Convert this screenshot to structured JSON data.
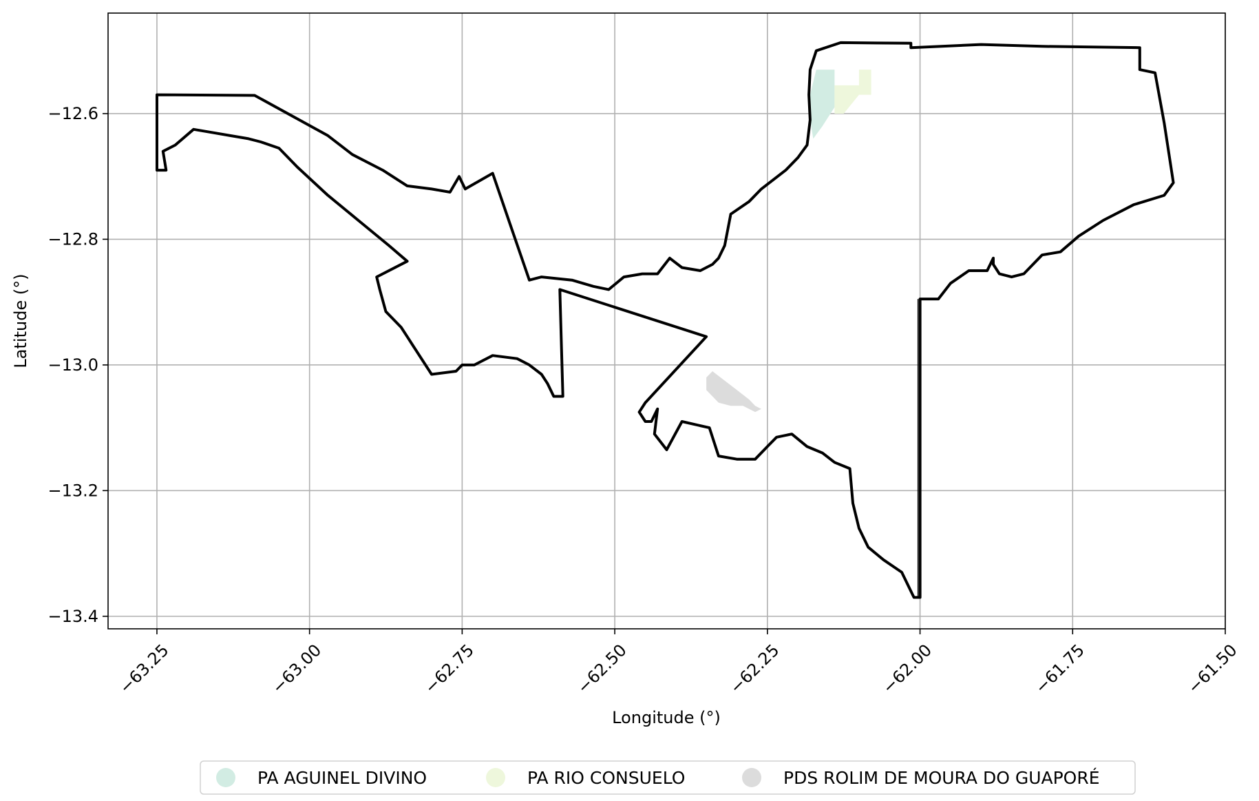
{
  "chart_data": {
    "type": "map",
    "xlabel": "Longitude (°)",
    "ylabel": "Latitude (°)",
    "xlim": [
      -63.33,
      -61.5
    ],
    "ylim": [
      -13.42,
      -12.44
    ],
    "grid": true,
    "x_ticks": [
      {
        "value": -63.25,
        "label": "−63.25"
      },
      {
        "value": -63.0,
        "label": "−63.00"
      },
      {
        "value": -62.75,
        "label": "−62.75"
      },
      {
        "value": -62.5,
        "label": "−62.50"
      },
      {
        "value": -62.25,
        "label": "−62.25"
      },
      {
        "value": -62.0,
        "label": "−62.00"
      },
      {
        "value": -61.75,
        "label": "−61.75"
      },
      {
        "value": -61.5,
        "label": "−61.50"
      }
    ],
    "y_ticks": [
      {
        "value": -12.6,
        "label": "−12.6"
      },
      {
        "value": -12.8,
        "label": "−12.8"
      },
      {
        "value": -13.0,
        "label": "−13.0"
      },
      {
        "value": -13.2,
        "label": "−13.2"
      },
      {
        "value": -13.4,
        "label": "−13.4"
      }
    ],
    "legend_position": "bottom-center",
    "outline_color": "#000000",
    "boundary": [
      [
        -63.25,
        -12.57
      ],
      [
        -63.09,
        -12.571
      ],
      [
        -62.97,
        -12.635
      ],
      [
        -62.93,
        -12.665
      ],
      [
        -62.88,
        -12.69
      ],
      [
        -62.84,
        -12.715
      ],
      [
        -62.8,
        -12.72
      ],
      [
        -62.77,
        -12.725
      ],
      [
        -62.755,
        -12.7
      ],
      [
        -62.745,
        -12.72
      ],
      [
        -62.7,
        -12.695
      ],
      [
        -62.67,
        -12.78
      ],
      [
        -62.64,
        -12.865
      ],
      [
        -62.62,
        -12.86
      ],
      [
        -62.57,
        -12.865
      ],
      [
        -62.535,
        -12.875
      ],
      [
        -62.51,
        -12.88
      ],
      [
        -62.485,
        -12.86
      ],
      [
        -62.455,
        -12.855
      ],
      [
        -62.43,
        -12.855
      ],
      [
        -62.41,
        -12.83
      ],
      [
        -62.39,
        -12.845
      ],
      [
        -62.36,
        -12.85
      ],
      [
        -62.34,
        -12.84
      ],
      [
        -62.33,
        -12.83
      ],
      [
        -62.32,
        -12.81
      ],
      [
        -62.31,
        -12.76
      ],
      [
        -62.28,
        -12.74
      ],
      [
        -62.26,
        -12.72
      ],
      [
        -62.22,
        -12.69
      ],
      [
        -62.2,
        -12.67
      ],
      [
        -62.185,
        -12.65
      ],
      [
        -62.18,
        -12.61
      ],
      [
        -62.182,
        -12.57
      ],
      [
        -62.18,
        -12.53
      ],
      [
        -62.17,
        -12.5
      ],
      [
        -62.13,
        -12.487
      ],
      [
        -62.015,
        -12.488
      ],
      [
        -62.015,
        -12.495
      ],
      [
        -61.9,
        -12.49
      ],
      [
        -61.8,
        -12.493
      ],
      [
        -61.64,
        -12.495
      ],
      [
        -61.64,
        -12.53
      ],
      [
        -61.615,
        -12.535
      ],
      [
        -61.6,
        -12.615
      ],
      [
        -61.585,
        -12.71
      ],
      [
        -61.6,
        -12.73
      ],
      [
        -61.65,
        -12.745
      ],
      [
        -61.7,
        -12.77
      ],
      [
        -61.74,
        -12.795
      ],
      [
        -61.77,
        -12.82
      ],
      [
        -61.8,
        -12.825
      ],
      [
        -61.83,
        -12.855
      ],
      [
        -61.85,
        -12.86
      ],
      [
        -61.87,
        -12.855
      ],
      [
        -61.88,
        -12.84
      ],
      [
        -61.88,
        -12.83
      ],
      [
        -61.89,
        -12.85
      ],
      [
        -61.92,
        -12.85
      ],
      [
        -61.95,
        -12.87
      ],
      [
        -61.97,
        -12.895
      ],
      [
        -62.0,
        -12.895
      ],
      [
        -62.0,
        -13.37
      ],
      [
        -62.01,
        -13.37
      ],
      [
        -62.03,
        -13.33
      ],
      [
        -62.06,
        -13.31
      ],
      [
        -62.085,
        -13.29
      ],
      [
        -62.1,
        -13.26
      ],
      [
        -62.11,
        -13.22
      ],
      [
        -62.115,
        -13.165
      ],
      [
        -62.14,
        -13.155
      ],
      [
        -62.16,
        -13.14
      ],
      [
        -62.185,
        -13.13
      ],
      [
        -62.21,
        -13.11
      ],
      [
        -62.235,
        -13.115
      ],
      [
        -62.25,
        -13.13
      ],
      [
        -62.27,
        -13.15
      ],
      [
        -62.3,
        -13.15
      ],
      [
        -62.33,
        -13.145
      ],
      [
        -62.345,
        -13.1
      ],
      [
        -62.39,
        -13.09
      ],
      [
        -62.415,
        -13.135
      ],
      [
        -62.435,
        -13.11
      ],
      [
        -62.43,
        -13.07
      ],
      [
        -62.44,
        -13.09
      ],
      [
        -62.45,
        -13.09
      ],
      [
        -62.46,
        -13.075
      ],
      [
        -62.45,
        -13.06
      ],
      [
        -62.35,
        -12.955
      ],
      [
        -62.59,
        -12.88
      ],
      [
        -62.585,
        -13.05
      ],
      [
        -62.6,
        -13.05
      ],
      [
        -62.61,
        -13.03
      ],
      [
        -62.62,
        -13.015
      ],
      [
        -62.64,
        -13.0
      ],
      [
        -62.66,
        -12.99
      ],
      [
        -62.7,
        -12.985
      ],
      [
        -62.73,
        -13.0
      ],
      [
        -62.75,
        -13.0
      ],
      [
        -62.76,
        -13.01
      ],
      [
        -62.8,
        -13.015
      ],
      [
        -62.83,
        -12.97
      ],
      [
        -62.84,
        -12.955
      ],
      [
        -62.85,
        -12.94
      ],
      [
        -62.86,
        -12.93
      ],
      [
        -62.875,
        -12.915
      ],
      [
        -62.885,
        -12.88
      ],
      [
        -62.89,
        -12.86
      ],
      [
        -62.84,
        -12.835
      ],
      [
        -62.87,
        -12.81
      ],
      [
        -62.92,
        -12.77
      ],
      [
        -62.97,
        -12.73
      ],
      [
        -63.02,
        -12.685
      ],
      [
        -63.05,
        -12.655
      ],
      [
        -63.08,
        -12.645
      ],
      [
        -63.1,
        -12.64
      ],
      [
        -63.13,
        -12.635
      ],
      [
        -63.16,
        -12.63
      ],
      [
        -63.19,
        -12.625
      ],
      [
        -63.22,
        -12.65
      ],
      [
        -63.24,
        -12.66
      ],
      [
        -63.235,
        -12.69
      ],
      [
        -63.25,
        -12.69
      ]
    ],
    "boundary_ribbon": [
      [
        -62.0,
        -12.895
      ],
      [
        -62.0,
        -13.37
      ]
    ],
    "series": [
      {
        "name": "PA AGUINEL DIVINO",
        "color": "#d2ece3",
        "polygon": [
          [
            -62.17,
            -12.53
          ],
          [
            -62.14,
            -12.53
          ],
          [
            -62.14,
            -12.59
          ],
          [
            -62.15,
            -12.605
          ],
          [
            -62.16,
            -12.62
          ],
          [
            -62.175,
            -12.64
          ],
          [
            -62.18,
            -12.61
          ],
          [
            -62.18,
            -12.57
          ]
        ]
      },
      {
        "name": "PA RIO CONSUELO",
        "color": "#eef7dc",
        "polygon": [
          [
            -62.14,
            -12.555
          ],
          [
            -62.1,
            -12.555
          ],
          [
            -62.1,
            -12.53
          ],
          [
            -62.08,
            -12.53
          ],
          [
            -62.08,
            -12.57
          ],
          [
            -62.1,
            -12.57
          ],
          [
            -62.125,
            -12.6
          ],
          [
            -62.14,
            -12.6
          ]
        ]
      },
      {
        "name": "PDS ROLIM DE MOURA DO GUAPORÉ",
        "color": "#dcdcdc",
        "polygon": [
          [
            -62.35,
            -13.02
          ],
          [
            -62.34,
            -13.01
          ],
          [
            -62.3,
            -13.04
          ],
          [
            -62.28,
            -13.055
          ],
          [
            -62.27,
            -13.065
          ],
          [
            -62.26,
            -13.07
          ],
          [
            -62.27,
            -13.075
          ],
          [
            -62.29,
            -13.065
          ],
          [
            -62.31,
            -13.065
          ],
          [
            -62.33,
            -13.06
          ],
          [
            -62.35,
            -13.04
          ]
        ]
      }
    ]
  }
}
